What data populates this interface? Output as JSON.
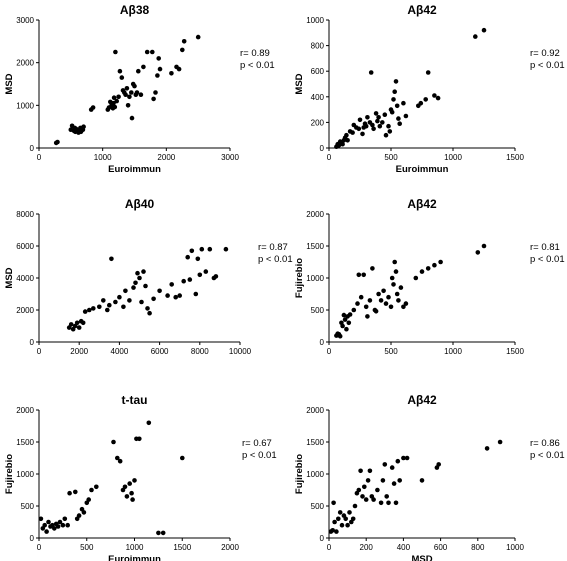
{
  "chart_data": [
    {
      "type": "scatter",
      "title": "Aβ38",
      "xlabel": "Euroimmun",
      "ylabel": "MSD",
      "xlim": [
        0,
        3000
      ],
      "ylim": [
        0,
        3000
      ],
      "x_ticks": [
        "0",
        "1000",
        "2000",
        "3000"
      ],
      "y_ticks": [
        "0",
        "1000",
        "2000",
        "3000"
      ],
      "annotation": [
        "r= 0.89",
        "p < 0.01"
      ],
      "points": [
        [
          270,
          120
        ],
        [
          290,
          140
        ],
        [
          500,
          430
        ],
        [
          520,
          520
        ],
        [
          550,
          400
        ],
        [
          560,
          470
        ],
        [
          570,
          380
        ],
        [
          580,
          450
        ],
        [
          600,
          430
        ],
        [
          620,
          360
        ],
        [
          640,
          400
        ],
        [
          650,
          470
        ],
        [
          660,
          380
        ],
        [
          690,
          430
        ],
        [
          700,
          500
        ],
        [
          820,
          900
        ],
        [
          850,
          950
        ],
        [
          1080,
          900
        ],
        [
          1100,
          950
        ],
        [
          1120,
          1080
        ],
        [
          1140,
          1000
        ],
        [
          1160,
          930
        ],
        [
          1170,
          1050
        ],
        [
          1180,
          1180
        ],
        [
          1190,
          960
        ],
        [
          1200,
          2250
        ],
        [
          1220,
          1100
        ],
        [
          1250,
          1200
        ],
        [
          1270,
          1800
        ],
        [
          1300,
          1650
        ],
        [
          1320,
          1350
        ],
        [
          1340,
          1300
        ],
        [
          1360,
          1250
        ],
        [
          1380,
          1400
        ],
        [
          1400,
          1000
        ],
        [
          1420,
          1200
        ],
        [
          1450,
          1300
        ],
        [
          1460,
          700
        ],
        [
          1480,
          1500
        ],
        [
          1500,
          1450
        ],
        [
          1520,
          1250
        ],
        [
          1540,
          1300
        ],
        [
          1560,
          1800
        ],
        [
          1600,
          1250
        ],
        [
          1640,
          1900
        ],
        [
          1700,
          2250
        ],
        [
          1780,
          2250
        ],
        [
          1800,
          1150
        ],
        [
          1830,
          1300
        ],
        [
          1860,
          1700
        ],
        [
          1880,
          2100
        ],
        [
          1900,
          1850
        ],
        [
          2080,
          1750
        ],
        [
          2160,
          1900
        ],
        [
          2200,
          1850
        ],
        [
          2250,
          2300
        ],
        [
          2280,
          2500
        ],
        [
          2500,
          2600
        ]
      ]
    },
    {
      "type": "scatter",
      "title": "Aβ42",
      "xlabel": "Euroimmun",
      "ylabel": "MSD",
      "xlim": [
        0,
        1500
      ],
      "ylim": [
        0,
        1000
      ],
      "x_ticks": [
        "0",
        "500",
        "1000",
        "1500"
      ],
      "y_ticks": [
        "0",
        "200",
        "400",
        "600",
        "800",
        "1000"
      ],
      "annotation": [
        "r= 0.92",
        "p < 0.01"
      ],
      "points": [
        [
          60,
          10
        ],
        [
          70,
          30
        ],
        [
          80,
          20
        ],
        [
          90,
          50
        ],
        [
          100,
          40
        ],
        [
          110,
          30
        ],
        [
          120,
          60
        ],
        [
          130,
          80
        ],
        [
          140,
          100
        ],
        [
          150,
          60
        ],
        [
          170,
          130
        ],
        [
          190,
          120
        ],
        [
          200,
          180
        ],
        [
          220,
          160
        ],
        [
          240,
          150
        ],
        [
          250,
          220
        ],
        [
          270,
          110
        ],
        [
          280,
          160
        ],
        [
          290,
          190
        ],
        [
          300,
          170
        ],
        [
          310,
          240
        ],
        [
          330,
          200
        ],
        [
          340,
          590
        ],
        [
          350,
          180
        ],
        [
          360,
          150
        ],
        [
          380,
          270
        ],
        [
          390,
          210
        ],
        [
          400,
          240
        ],
        [
          410,
          170
        ],
        [
          430,
          200
        ],
        [
          450,
          260
        ],
        [
          460,
          100
        ],
        [
          480,
          170
        ],
        [
          490,
          130
        ],
        [
          500,
          300
        ],
        [
          510,
          280
        ],
        [
          520,
          380
        ],
        [
          530,
          440
        ],
        [
          540,
          520
        ],
        [
          550,
          330
        ],
        [
          560,
          230
        ],
        [
          570,
          190
        ],
        [
          600,
          350
        ],
        [
          620,
          250
        ],
        [
          720,
          330
        ],
        [
          740,
          350
        ],
        [
          780,
          380
        ],
        [
          800,
          590
        ],
        [
          850,
          410
        ],
        [
          880,
          390
        ],
        [
          1180,
          870
        ],
        [
          1250,
          920
        ]
      ]
    },
    {
      "type": "scatter",
      "title": "Aβ40",
      "xlabel": "",
      "ylabel": "MSD",
      "xlim": [
        0,
        10000
      ],
      "ylim": [
        0,
        8000
      ],
      "x_ticks": [
        "0",
        "2000",
        "4000",
        "6000",
        "8000",
        "10000"
      ],
      "y_ticks": [
        "0",
        "2000",
        "4000",
        "6000",
        "8000"
      ],
      "annotation": [
        "r= 0.87",
        "p < 0.01"
      ],
      "points": [
        [
          1500,
          900
        ],
        [
          1600,
          1100
        ],
        [
          1700,
          800
        ],
        [
          1800,
          1000
        ],
        [
          1900,
          1200
        ],
        [
          2000,
          900
        ],
        [
          2100,
          1300
        ],
        [
          2200,
          1200
        ],
        [
          2300,
          1900
        ],
        [
          2500,
          2000
        ],
        [
          2700,
          2100
        ],
        [
          3000,
          2200
        ],
        [
          3200,
          2600
        ],
        [
          3400,
          2000
        ],
        [
          3500,
          2300
        ],
        [
          3600,
          5200
        ],
        [
          3800,
          2500
        ],
        [
          4000,
          2800
        ],
        [
          4200,
          2200
        ],
        [
          4300,
          3200
        ],
        [
          4500,
          2600
        ],
        [
          4700,
          3400
        ],
        [
          4800,
          3700
        ],
        [
          4900,
          4300
        ],
        [
          5000,
          4000
        ],
        [
          5100,
          2500
        ],
        [
          5200,
          4400
        ],
        [
          5300,
          3500
        ],
        [
          5400,
          2100
        ],
        [
          5500,
          1800
        ],
        [
          5700,
          2700
        ],
        [
          6000,
          3200
        ],
        [
          6400,
          2900
        ],
        [
          6600,
          3600
        ],
        [
          6800,
          2800
        ],
        [
          7000,
          2900
        ],
        [
          7200,
          3800
        ],
        [
          7400,
          5300
        ],
        [
          7500,
          3900
        ],
        [
          7600,
          5700
        ],
        [
          7800,
          3000
        ],
        [
          7900,
          5200
        ],
        [
          8000,
          4200
        ],
        [
          8100,
          5800
        ],
        [
          8300,
          4400
        ],
        [
          8500,
          5800
        ],
        [
          8700,
          4000
        ],
        [
          8800,
          4100
        ],
        [
          9300,
          5800
        ]
      ]
    },
    {
      "type": "scatter",
      "title": "Aβ42",
      "xlabel": "",
      "ylabel": "Fujirebio",
      "xlim": [
        0,
        1500
      ],
      "ylim": [
        0,
        2000
      ],
      "x_ticks": [
        "0",
        "500",
        "1000",
        "1500"
      ],
      "y_ticks": [
        "0",
        "500",
        "1000",
        "1500",
        "2000"
      ],
      "annotation": [
        "r= 0.81",
        "p < 0.01"
      ],
      "points": [
        [
          60,
          100
        ],
        [
          70,
          130
        ],
        [
          80,
          120
        ],
        [
          90,
          90
        ],
        [
          100,
          300
        ],
        [
          110,
          250
        ],
        [
          120,
          420
        ],
        [
          130,
          350
        ],
        [
          140,
          200
        ],
        [
          150,
          400
        ],
        [
          160,
          300
        ],
        [
          170,
          430
        ],
        [
          200,
          500
        ],
        [
          230,
          600
        ],
        [
          240,
          1050
        ],
        [
          260,
          700
        ],
        [
          280,
          1050
        ],
        [
          300,
          550
        ],
        [
          310,
          400
        ],
        [
          330,
          650
        ],
        [
          350,
          1150
        ],
        [
          370,
          500
        ],
        [
          380,
          480
        ],
        [
          400,
          750
        ],
        [
          420,
          650
        ],
        [
          440,
          800
        ],
        [
          460,
          600
        ],
        [
          480,
          700
        ],
        [
          500,
          550
        ],
        [
          510,
          1000
        ],
        [
          520,
          900
        ],
        [
          530,
          1250
        ],
        [
          540,
          1100
        ],
        [
          550,
          750
        ],
        [
          560,
          650
        ],
        [
          580,
          850
        ],
        [
          600,
          550
        ],
        [
          620,
          600
        ],
        [
          700,
          1000
        ],
        [
          750,
          1100
        ],
        [
          800,
          1150
        ],
        [
          850,
          1200
        ],
        [
          900,
          1250
        ],
        [
          1200,
          1400
        ],
        [
          1250,
          1500
        ]
      ]
    },
    {
      "type": "scatter",
      "title": "t-tau",
      "xlabel": "Euroimmun",
      "ylabel": "Fujirebio",
      "xlim": [
        0,
        2000
      ],
      "ylim": [
        0,
        2000
      ],
      "x_ticks": [
        "0",
        "500",
        "1000",
        "1500",
        "2000"
      ],
      "y_ticks": [
        "0",
        "500",
        "1000",
        "1500",
        "2000"
      ],
      "annotation": [
        "r= 0.67",
        "p < 0.01"
      ],
      "points": [
        [
          20,
          300
        ],
        [
          40,
          150
        ],
        [
          60,
          200
        ],
        [
          80,
          100
        ],
        [
          100,
          250
        ],
        [
          120,
          180
        ],
        [
          140,
          200
        ],
        [
          160,
          150
        ],
        [
          180,
          220
        ],
        [
          200,
          180
        ],
        [
          220,
          250
        ],
        [
          250,
          200
        ],
        [
          270,
          300
        ],
        [
          300,
          200
        ],
        [
          320,
          700
        ],
        [
          380,
          720
        ],
        [
          400,
          300
        ],
        [
          420,
          350
        ],
        [
          450,
          450
        ],
        [
          470,
          400
        ],
        [
          500,
          550
        ],
        [
          520,
          600
        ],
        [
          550,
          750
        ],
        [
          600,
          800
        ],
        [
          780,
          1500
        ],
        [
          820,
          1250
        ],
        [
          850,
          1200
        ],
        [
          880,
          750
        ],
        [
          900,
          800
        ],
        [
          920,
          650
        ],
        [
          950,
          850
        ],
        [
          970,
          700
        ],
        [
          980,
          600
        ],
        [
          1000,
          900
        ],
        [
          1020,
          1550
        ],
        [
          1050,
          1550
        ],
        [
          1150,
          1800
        ],
        [
          1250,
          80
        ],
        [
          1300,
          80
        ],
        [
          1500,
          1250
        ]
      ]
    },
    {
      "type": "scatter",
      "title": "Aβ42",
      "xlabel": "MSD",
      "ylabel": "Fujirebio",
      "xlim": [
        0,
        1000
      ],
      "ylim": [
        0,
        2000
      ],
      "x_ticks": [
        "0",
        "200",
        "400",
        "600",
        "800",
        "1000"
      ],
      "y_ticks": [
        "0",
        "500",
        "1000",
        "1500",
        "2000"
      ],
      "annotation": [
        "r= 0.86",
        "p < 0.01"
      ],
      "points": [
        [
          10,
          100
        ],
        [
          20,
          120
        ],
        [
          25,
          550
        ],
        [
          30,
          250
        ],
        [
          40,
          100
        ],
        [
          50,
          300
        ],
        [
          60,
          400
        ],
        [
          70,
          200
        ],
        [
          80,
          350
        ],
        [
          90,
          300
        ],
        [
          100,
          200
        ],
        [
          110,
          400
        ],
        [
          120,
          250
        ],
        [
          130,
          300
        ],
        [
          140,
          500
        ],
        [
          150,
          700
        ],
        [
          160,
          750
        ],
        [
          170,
          1050
        ],
        [
          180,
          650
        ],
        [
          190,
          800
        ],
        [
          200,
          600
        ],
        [
          210,
          900
        ],
        [
          220,
          1050
        ],
        [
          230,
          650
        ],
        [
          240,
          600
        ],
        [
          260,
          750
        ],
        [
          280,
          550
        ],
        [
          290,
          900
        ],
        [
          300,
          1150
        ],
        [
          310,
          650
        ],
        [
          320,
          550
        ],
        [
          340,
          1100
        ],
        [
          350,
          850
        ],
        [
          360,
          550
        ],
        [
          370,
          1200
        ],
        [
          380,
          900
        ],
        [
          400,
          1250
        ],
        [
          420,
          1250
        ],
        [
          500,
          900
        ],
        [
          580,
          1100
        ],
        [
          590,
          1150
        ],
        [
          850,
          1400
        ],
        [
          920,
          1500
        ]
      ]
    }
  ]
}
